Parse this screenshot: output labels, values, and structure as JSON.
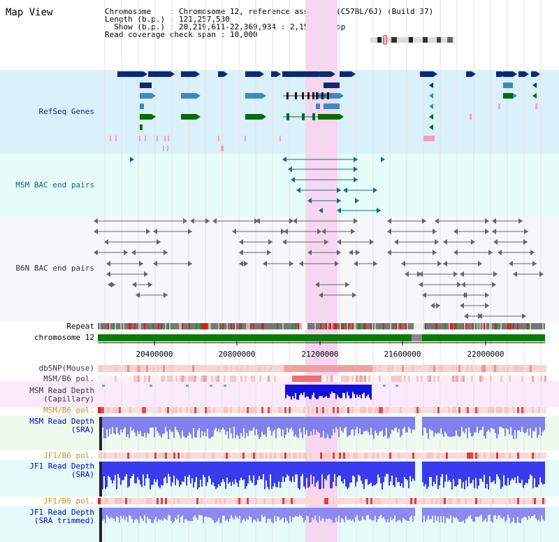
{
  "page": {
    "title": "Map View"
  },
  "info": {
    "chromosome_label": "Chromosome    ",
    "chromosome_value": "Chromosome 12, reference assembly (C57BL/6J) (Build 37)",
    "length_label": "Length (b.p.)",
    "length_value": "121,257,530",
    "show_label": "Show (b.p.)",
    "show_value": "20,219,611-22,369,934 : 2,150,324 bp",
    "span_label": "Read coverage check span",
    "span_value": "10,000"
  },
  "tracks": {
    "refseq": "RefSeq Genes",
    "msm_bac": "MSM BAC end pairs",
    "b6n_bac": "B6N BAC end pairs",
    "repeat": "Repeat",
    "chromosome": "chromosome 12",
    "dbsnp": "dbSNP(Mouse)",
    "msm_b6_pol_1": "MSM/B6 pol.",
    "msm_depth_cap_1": "MSM Read Depth",
    "msm_depth_cap_2": "(Capillary)",
    "msm_b6_pol_2": "MSM/B6 pol.",
    "msm_depth_sra_1": "MSM Read Depth",
    "msm_depth_sra_2": "(SRA)",
    "jf1_b6_pol_1": "JF1/B6 pol.",
    "jf1_depth_sra_1": "JF1 Read Depth",
    "jf1_depth_sra_2": "(SRA)",
    "jf1_b6_pol_2": "JF1/B6 pol.",
    "jf1_depth_trim_1": "JF1 Read Depth",
    "jf1_depth_trim_2": "(SRA trimmed)"
  },
  "axis": {
    "ticks": [
      "20400000",
      "20800000",
      "21200000",
      "21600000",
      "22000000"
    ]
  },
  "colors": {
    "refseq_bg": "#daf0fa",
    "msm_bac_bg": "#e6fcf8",
    "b6n_bg": "#f7f7fb",
    "highlight": "#f8d6f2",
    "gene_dark": "#0a2c6e",
    "gene_mid": "#3a8cbf",
    "gene_green": "#0a6a0a",
    "chromosome_bar": "#0a7a0a",
    "depth_blue": "#1010e0"
  }
}
